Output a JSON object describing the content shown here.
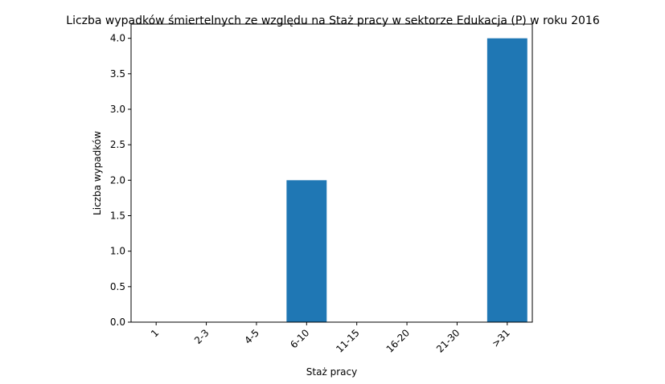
{
  "chart_data": {
    "type": "bar",
    "title": "Liczba wypadków śmiertelnych ze względu na Staż pracy w sektorze Edukacja  (P)   w roku 2016",
    "xlabel": "Staż pracy",
    "ylabel": "Liczba wypadków",
    "categories": [
      "1",
      "2-3",
      "4-5",
      "6-10",
      "11-15",
      "16-20",
      "21-30",
      ">31"
    ],
    "values": [
      0,
      0,
      0,
      2,
      0,
      0,
      0,
      4
    ],
    "ylim": [
      0,
      4.2
    ],
    "yticks": [
      "0.0",
      "0.5",
      "1.0",
      "1.5",
      "2.0",
      "2.5",
      "3.0",
      "3.5",
      "4.0"
    ],
    "bar_color": "#1f77b4",
    "grid": false,
    "legend": "none"
  }
}
